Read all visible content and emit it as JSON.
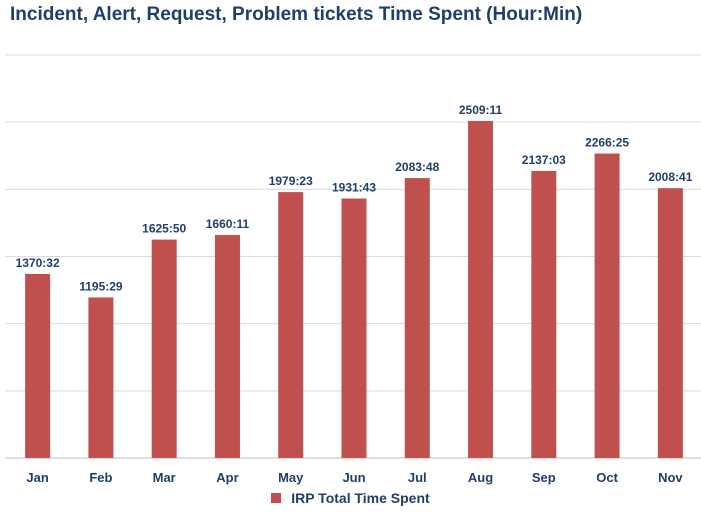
{
  "chart_data": {
    "type": "bar",
    "title": "Incident, Alert, Request, Problem tickets Time Spent (Hour:Min)",
    "categories": [
      "Jan",
      "Feb",
      "Mar",
      "Apr",
      "May",
      "Jun",
      "Jul",
      "Aug",
      "Sep",
      "Oct",
      "Nov"
    ],
    "series": [
      {
        "name": "IRP Total Time Spent",
        "color": "#c0504d",
        "values": [
          1370.53,
          1195.48,
          1625.83,
          1660.18,
          1979.38,
          1931.72,
          2083.8,
          2509.18,
          2137.05,
          2266.42,
          2008.68
        ],
        "labels": [
          "1370:32",
          "1195:29",
          "1625:50",
          "1660:11",
          "1979:23",
          "1931:43",
          "2083:48",
          "2509:11",
          "2137:03",
          "2266:25",
          "2008:41"
        ]
      }
    ],
    "ylim": [
      0,
      3000
    ],
    "y_tick_step": 500,
    "y_tick_labels_visible": false,
    "grid": true,
    "legend_position": "bottom"
  }
}
